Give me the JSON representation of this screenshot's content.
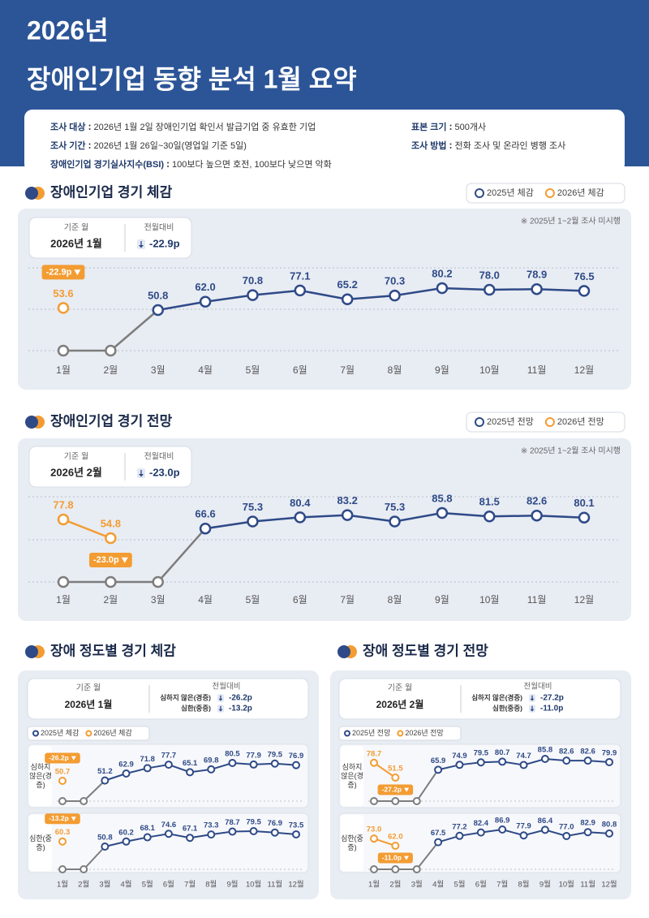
{
  "header": {
    "year": "2026년",
    "title": "장애인기업 동향 분석 1월 요약"
  },
  "survey": {
    "left": [
      {
        "label": "조사 대상",
        "value": "2026년 1월 2일 장애인기업 확인서 발급기업 중 유효한 기업"
      },
      {
        "label": "조사 기간",
        "value": "2026년 1월 26일~30일(영업일 기준 5일)"
      },
      {
        "label": "장애인기업 경기실사지수(BSI)",
        "value": "100보다 높으면 호전, 100보다 낮으면 악화"
      }
    ],
    "right": [
      {
        "label": "표본 크기",
        "value": "500개사"
      },
      {
        "label": "조사 방법",
        "value": "전화 조사 및 온라인 병행 조사"
      }
    ]
  },
  "chart_data": [
    {
      "type": "line",
      "title": "장애인기업 경기 체감",
      "legend": [
        {
          "name": "2025년 체감",
          "color": "#2e4a87"
        },
        {
          "name": "2026년 체감",
          "color": "#f39c32"
        }
      ],
      "base_month_label": "기준 월",
      "base_month": "2026년 1월",
      "change_label": "전월대비",
      "note": "※ 2025년 1~2월 조사 미시행",
      "categories": [
        "1월",
        "2월",
        "3월",
        "4월",
        "5월",
        "6월",
        "7월",
        "8월",
        "9월",
        "10월",
        "11월",
        "12월"
      ],
      "rows": [
        {
          "change": "-22.9p",
          "series": [
            {
              "values": [
                null,
                null,
                50.8,
                62.0,
                70.8,
                77.1,
                65.2,
                70.3,
                80.2,
                78.0,
                78.9,
                76.5
              ],
              "value_labels": [
                null,
                null,
                "50.8",
                "62.0",
                "70.8",
                "77.1",
                "65.2",
                "70.3",
                "80.2",
                "78.0",
                "78.9",
                "76.5"
              ]
            },
            {
              "values": [
                53.6,
                null,
                null,
                null,
                null,
                null,
                null,
                null,
                null,
                null,
                null,
                null
              ],
              "value_labels": [
                "53.6",
                null,
                null,
                null,
                null,
                null,
                null,
                null,
                null,
                null,
                null,
                null
              ]
            }
          ]
        }
      ]
    },
    {
      "type": "line",
      "title": "장애인기업 경기 전망",
      "legend": [
        {
          "name": "2025년 전망",
          "color": "#2e4a87"
        },
        {
          "name": "2026년 전망",
          "color": "#f39c32"
        }
      ],
      "base_month_label": "기준 월",
      "base_month": "2026년 2월",
      "change_label": "전월대비",
      "note": "※ 2025년 1~2월 조사 미시행",
      "categories": [
        "1월",
        "2월",
        "3월",
        "4월",
        "5월",
        "6월",
        "7월",
        "8월",
        "9월",
        "10월",
        "11월",
        "12월"
      ],
      "rows": [
        {
          "change": "-23.0p",
          "series": [
            {
              "values": [
                null,
                null,
                null,
                66.6,
                75.3,
                80.4,
                83.2,
                75.3,
                85.8,
                81.5,
                82.6,
                80.1
              ],
              "value_labels": [
                null,
                null,
                null,
                "66.6",
                "75.3",
                "80.4",
                "83.2",
                "75.3",
                "85.8",
                "81.5",
                "82.6",
                "80.1"
              ]
            },
            {
              "values": [
                77.8,
                54.8,
                null,
                null,
                null,
                null,
                null,
                null,
                null,
                null,
                null,
                null
              ],
              "value_labels": [
                "77.8",
                "54.8",
                null,
                null,
                null,
                null,
                null,
                null,
                null,
                null,
                null,
                null
              ]
            }
          ]
        }
      ]
    },
    {
      "type": "line",
      "title": "장애 정도별 경기 체감",
      "legend": [
        {
          "name": "2025년 체감",
          "color": "#2e4a87"
        },
        {
          "name": "2026년 체감",
          "color": "#f39c32"
        }
      ],
      "base_month_label": "기준 월",
      "base_month": "2026년 1월",
      "change_label": "전월대비",
      "categories": [
        "1월",
        "2월",
        "3월",
        "4월",
        "5월",
        "6월",
        "7월",
        "8월",
        "9월",
        "10월",
        "11월",
        "12월"
      ],
      "rows": [
        {
          "name": "심하지 않은(경증)",
          "change": "-26.2p",
          "series": [
            {
              "values": [
                null,
                null,
                51.2,
                62.9,
                71.8,
                77.7,
                65.1,
                69.8,
                80.5,
                77.9,
                79.5,
                76.9
              ],
              "value_labels": [
                null,
                null,
                "51.2",
                "62.9",
                "71.8",
                "77.7",
                "65.1",
                "69.8",
                "80.5",
                "77.9",
                "79.5",
                "76.9"
              ]
            },
            {
              "values": [
                50.7,
                null,
                null,
                null,
                null,
                null,
                null,
                null,
                null,
                null,
                null,
                null
              ],
              "value_labels": [
                "50.7",
                null,
                null,
                null,
                null,
                null,
                null,
                null,
                null,
                null,
                null,
                null
              ]
            }
          ]
        },
        {
          "name": "심한(중증)",
          "change": "-13.2p",
          "series": [
            {
              "values": [
                null,
                null,
                50.8,
                60.2,
                68.1,
                74.6,
                67.1,
                73.3,
                78.7,
                79.5,
                76.9,
                73.5
              ],
              "value_labels": [
                null,
                null,
                "50.8",
                "60.2",
                "68.1",
                "74.6",
                "67.1",
                "73.3",
                "78.7",
                "79.5",
                "76.9",
                "73.5"
              ]
            },
            {
              "values": [
                60.3,
                null,
                null,
                null,
                null,
                null,
                null,
                null,
                null,
                null,
                null,
                null
              ],
              "value_labels": [
                "60.3",
                null,
                null,
                null,
                null,
                null,
                null,
                null,
                null,
                null,
                null,
                null
              ]
            }
          ]
        }
      ]
    },
    {
      "type": "line",
      "title": "장애 정도별 경기 전망",
      "legend": [
        {
          "name": "2025년 전망",
          "color": "#2e4a87"
        },
        {
          "name": "2026년 전망",
          "color": "#f39c32"
        }
      ],
      "base_month_label": "기준 월",
      "base_month": "2026년 2월",
      "change_label": "전월대비",
      "categories": [
        "1월",
        "2월",
        "3월",
        "4월",
        "5월",
        "6월",
        "7월",
        "8월",
        "9월",
        "10월",
        "11월",
        "12월"
      ],
      "rows": [
        {
          "name": "심하지 않은(경증)",
          "change": "-27.2p",
          "series": [
            {
              "values": [
                null,
                null,
                null,
                65.9,
                74.9,
                79.5,
                80.7,
                74.7,
                85.8,
                82.6,
                82.6,
                79.9
              ],
              "value_labels": [
                null,
                null,
                null,
                "65.9",
                "74.9",
                "79.5",
                "80.7",
                "74.7",
                "85.8",
                "82.6",
                "82.6",
                "79.9"
              ]
            },
            {
              "values": [
                78.7,
                51.5,
                null,
                null,
                null,
                null,
                null,
                null,
                null,
                null,
                null,
                null
              ],
              "value_labels": [
                "78.7",
                "51.5",
                null,
                null,
                null,
                null,
                null,
                null,
                null,
                null,
                null,
                null
              ]
            }
          ]
        },
        {
          "name": "심한(중증)",
          "change": "-11.0p",
          "series": [
            {
              "values": [
                null,
                null,
                null,
                67.5,
                77.2,
                82.4,
                86.9,
                77.9,
                86.4,
                77.0,
                82.9,
                80.8
              ],
              "value_labels": [
                null,
                null,
                null,
                "67.5",
                "77.2",
                "82.4",
                "86.9",
                "77.9",
                "86.4",
                "77.0",
                "82.9",
                "80.8"
              ]
            },
            {
              "values": [
                73.0,
                62.0,
                null,
                null,
                null,
                null,
                null,
                null,
                null,
                null,
                null,
                null
              ],
              "value_labels": [
                "73.0",
                "62.0",
                null,
                null,
                null,
                null,
                null,
                null,
                null,
                null,
                null,
                null
              ]
            }
          ]
        }
      ]
    }
  ]
}
